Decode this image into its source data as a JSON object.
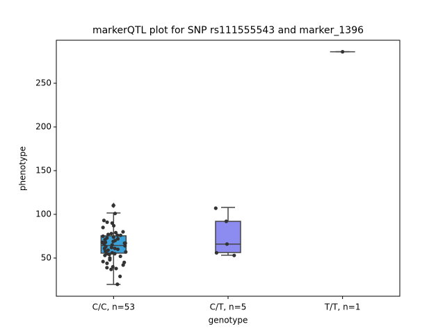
{
  "chart_data": {
    "type": "box",
    "title": "markerQTL plot for SNP rs111555543 and marker_1396",
    "x_label": "genotype",
    "y_label": "phenotype",
    "categories": [
      "C/C, n=53",
      "C/T, n=5",
      "T/T, n=1"
    ],
    "colors": [
      "#3ca0d8",
      "#8c8cf0",
      "#5ad4a0"
    ],
    "boxes": [
      {
        "whislo": 19.8,
        "q1": 55.6,
        "med": 64.3,
        "q3": 75.4,
        "whishi": 101.6,
        "fliers": [
          110.3
        ]
      },
      {
        "whislo": 53.2,
        "q1": 56.3,
        "med": 65.9,
        "q3": 92,
        "whishi": 107.9,
        "fliers": []
      },
      {
        "whislo": 286,
        "q1": 286,
        "med": 286,
        "q3": 286,
        "whishi": 286,
        "fliers": []
      }
    ],
    "points": [
      [
        110,
        101,
        93,
        91,
        90,
        87,
        85,
        80,
        79,
        78,
        77,
        76,
        76,
        75,
        74,
        73,
        72,
        71,
        70,
        69,
        68,
        68,
        67,
        67,
        66,
        65,
        64,
        63,
        62,
        61,
        60,
        59,
        58,
        57,
        56,
        55,
        55,
        54,
        53,
        52,
        50,
        48,
        46,
        45,
        44,
        42,
        40,
        39,
        38,
        37,
        29,
        20,
        61
      ],
      [
        107,
        92,
        66,
        56,
        53
      ],
      [
        286
      ]
    ],
    "ylim": [
      6.3,
      299.2
    ],
    "yticks": [
      50,
      100,
      150,
      200,
      250
    ]
  }
}
